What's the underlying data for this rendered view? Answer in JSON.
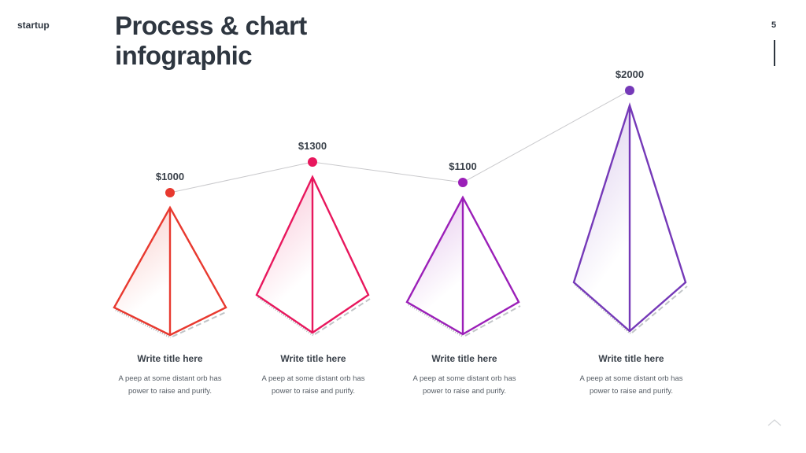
{
  "header": {
    "brand": "startup",
    "title_line1": "Process & chart",
    "title_line2": "infographic",
    "page_number": "5"
  },
  "chart_data": {
    "type": "line",
    "categories": [
      "Write title here",
      "Write title here",
      "Write title here",
      "Write title here"
    ],
    "values": [
      1000,
      1300,
      1100,
      2000
    ],
    "data_labels": [
      "$1000",
      "$1300",
      "$1100",
      "$2000"
    ],
    "colors": [
      "#e8392f",
      "#e8175d",
      "#9b1fb8",
      "#7539b8"
    ],
    "grid": false
  },
  "items": [
    {
      "title": "Write title here",
      "body_line1": "A peep at some distant orb has",
      "body_line2": "power to raise and purify."
    },
    {
      "title": "Write title here",
      "body_line1": "A peep at some distant orb has",
      "body_line2": "power to raise and purify."
    },
    {
      "title": "Write title here",
      "body_line1": "A peep at some distant orb has",
      "body_line2": "power to raise and purify."
    },
    {
      "title": "Write title here",
      "body_line1": "A peep at some distant orb has",
      "body_line2": "power to raise and purify."
    }
  ]
}
